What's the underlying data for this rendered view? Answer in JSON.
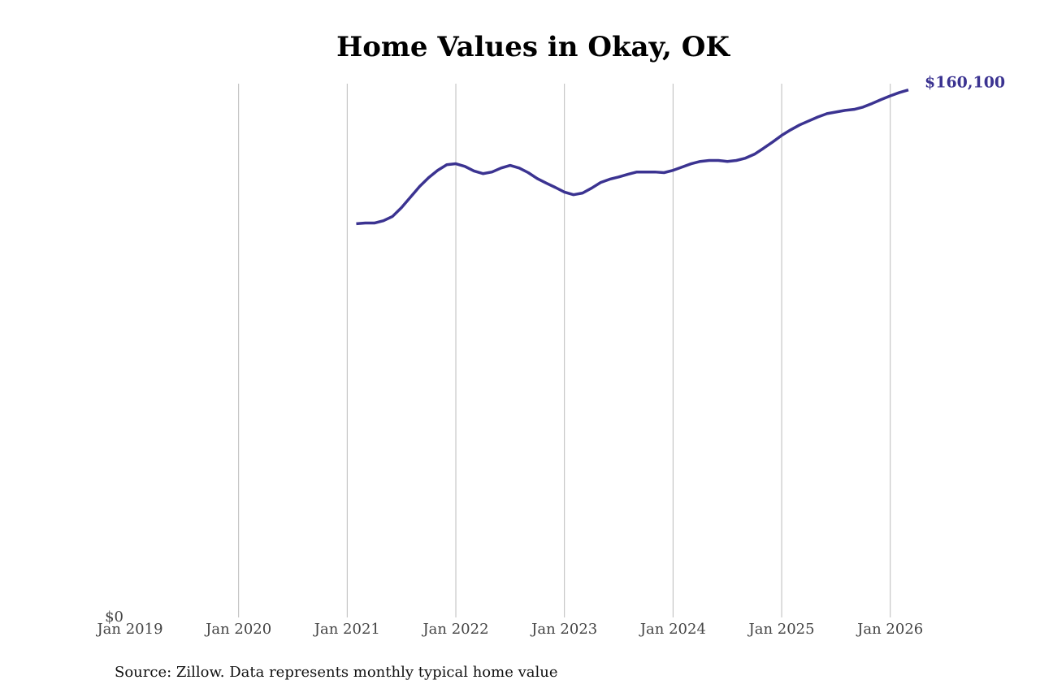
{
  "chart_data": {
    "type": "line",
    "title": "Home Values in Okay, OK",
    "source": "Source: Zillow. Data represents monthly typical home value",
    "x": [
      "2021-02",
      "2021-03",
      "2021-04",
      "2021-05",
      "2021-06",
      "2021-07",
      "2021-08",
      "2021-09",
      "2021-10",
      "2021-11",
      "2021-12",
      "2022-01",
      "2022-02",
      "2022-03",
      "2022-04",
      "2022-05",
      "2022-06",
      "2022-07",
      "2022-08",
      "2022-09",
      "2022-10",
      "2022-11",
      "2022-12",
      "2023-01",
      "2023-02",
      "2023-03",
      "2023-04",
      "2023-05",
      "2023-06",
      "2023-07",
      "2023-08",
      "2023-09",
      "2023-10",
      "2023-11",
      "2023-12",
      "2024-01",
      "2024-02",
      "2024-03",
      "2024-04",
      "2024-05",
      "2024-06",
      "2024-07",
      "2024-08",
      "2024-09",
      "2024-10",
      "2024-11",
      "2024-12",
      "2025-01",
      "2025-02",
      "2025-03",
      "2025-04",
      "2025-05",
      "2025-06",
      "2025-07",
      "2025-08",
      "2025-09",
      "2025-10",
      "2025-11",
      "2025-12",
      "2026-01",
      "2026-02",
      "2026-03"
    ],
    "series": [
      {
        "color": "#3b3391",
        "values": [
          119500,
          119700,
          119700,
          120400,
          121700,
          124400,
          127600,
          130800,
          133500,
          135700,
          137400,
          137700,
          136900,
          135500,
          134700,
          135200,
          136400,
          137200,
          136400,
          135000,
          133200,
          131800,
          130500,
          129100,
          128300,
          128800,
          130300,
          132000,
          133000,
          133700,
          134500,
          135200,
          135200,
          135200,
          135000,
          135700,
          136700,
          137700,
          138400,
          138700,
          138700,
          138400,
          138700,
          139400,
          140600,
          142400,
          144300,
          146300,
          148000,
          149500,
          150700,
          151900,
          152900,
          153400,
          153900,
          154200,
          154900,
          156000,
          157200,
          158300,
          159300,
          160100
        ],
        "value_labels": [
          null,
          null,
          null,
          null,
          null,
          null,
          null,
          null,
          null,
          null,
          null,
          null,
          null,
          null,
          null,
          null,
          null,
          null,
          null,
          null,
          null,
          null,
          null,
          null,
          null,
          null,
          null,
          null,
          null,
          null,
          null,
          null,
          null,
          null,
          null,
          null,
          null,
          null,
          null,
          null,
          null,
          null,
          null,
          null,
          null,
          null,
          null,
          null,
          null,
          null,
          null,
          null,
          null,
          null,
          null,
          null,
          null,
          null,
          null,
          null,
          null,
          "$160,100"
        ]
      }
    ],
    "xlim": [
      "2019-01",
      "2026-03"
    ],
    "xticks": [
      {
        "value": "2019-01",
        "label": "Jan 2019"
      },
      {
        "value": "2020-01",
        "label": "Jan 2020"
      },
      {
        "value": "2021-01",
        "label": "Jan 2021"
      },
      {
        "value": "2022-01",
        "label": "Jan 2022"
      },
      {
        "value": "2023-01",
        "label": "Jan 2023"
      },
      {
        "value": "2024-01",
        "label": "Jan 2024"
      },
      {
        "value": "2025-01",
        "label": "Jan 2025"
      },
      {
        "value": "2026-01",
        "label": "Jan 2026"
      }
    ],
    "ylim": [
      0,
      162000
    ],
    "yticks": [
      {
        "value": 0,
        "label": "$0"
      }
    ],
    "grid": true
  }
}
